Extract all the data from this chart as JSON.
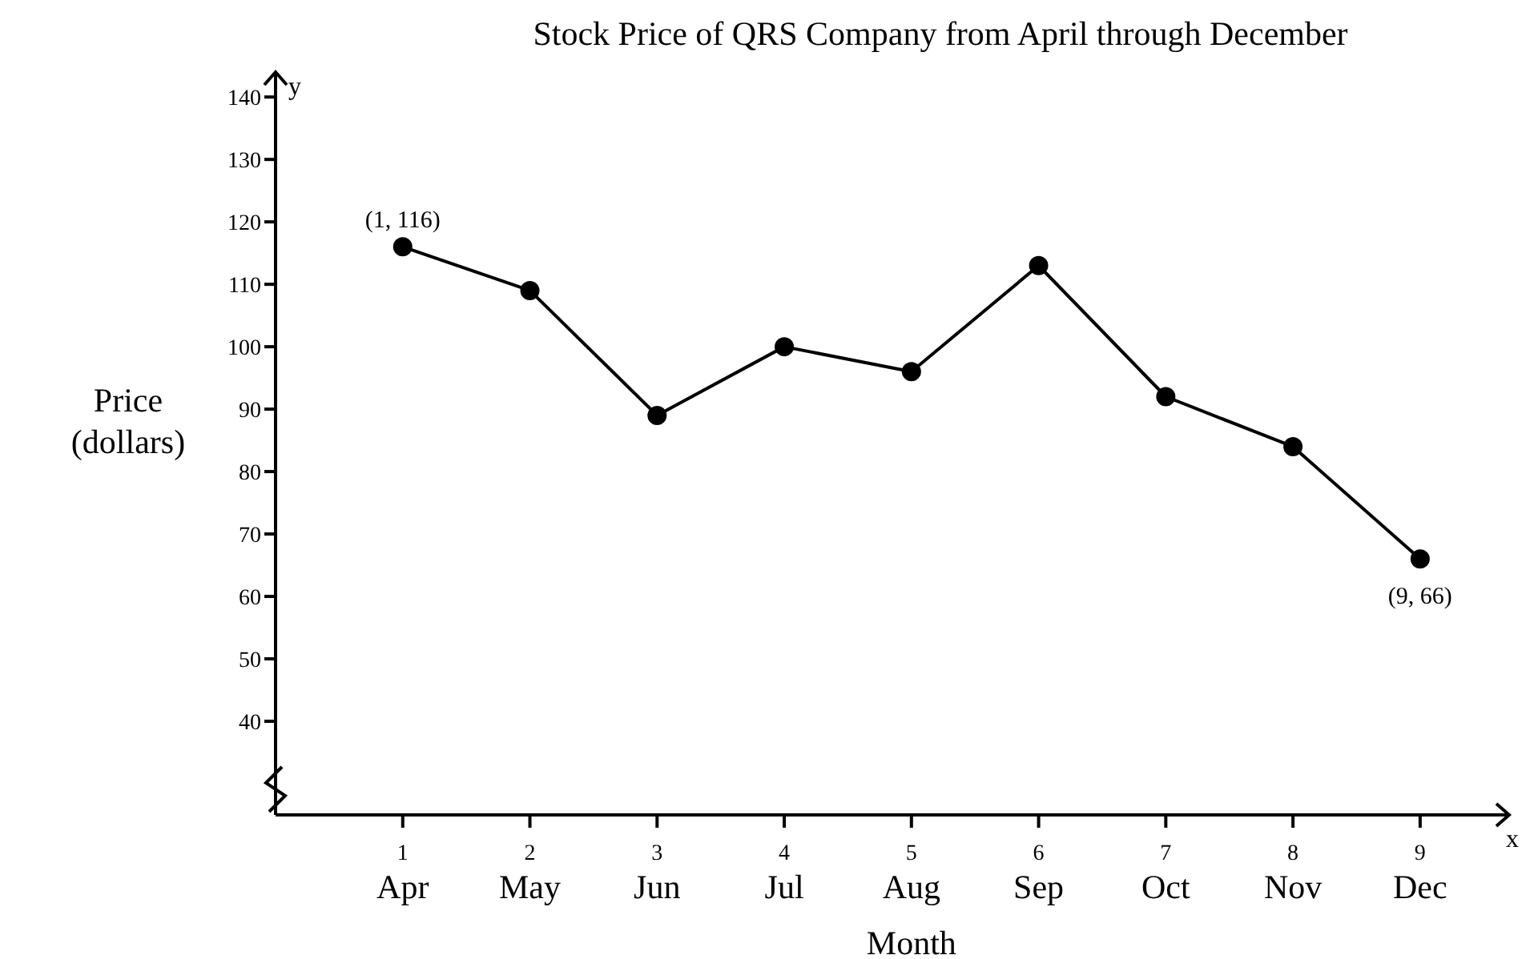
{
  "chart_data": {
    "type": "line",
    "title": "Stock Price of QRS Company from April through December",
    "xlabel": "Month",
    "ylabel": "Price (dollars)",
    "x": [
      1,
      2,
      3,
      4,
      5,
      6,
      7,
      8,
      9
    ],
    "series": [
      {
        "color": "#000000",
        "values": [
          116,
          109,
          89,
          100,
          96,
          113,
          92,
          84,
          66
        ]
      }
    ],
    "xlim": [
      0,
      9.7
    ],
    "xticks": [
      1,
      2,
      3,
      4,
      5,
      6,
      7,
      8,
      9
    ],
    "ylim": [
      25,
      144
    ],
    "yticks": [
      40,
      50,
      60,
      70,
      80,
      90,
      100,
      110,
      120,
      130,
      140
    ],
    "marker": "circle",
    "line_style": "solid",
    "grid": false,
    "legend": false,
    "annotations": [
      {
        "text": "(1, 116)",
        "x": 1,
        "y": 116
      },
      {
        "text": "(9, 66)",
        "x": 9,
        "y": 66
      },
      "y",
      "x",
      "Apr",
      "May",
      "Jun",
      "Jul",
      "Aug",
      "Sep",
      "Oct",
      "Nov",
      "Dec"
    ]
  }
}
